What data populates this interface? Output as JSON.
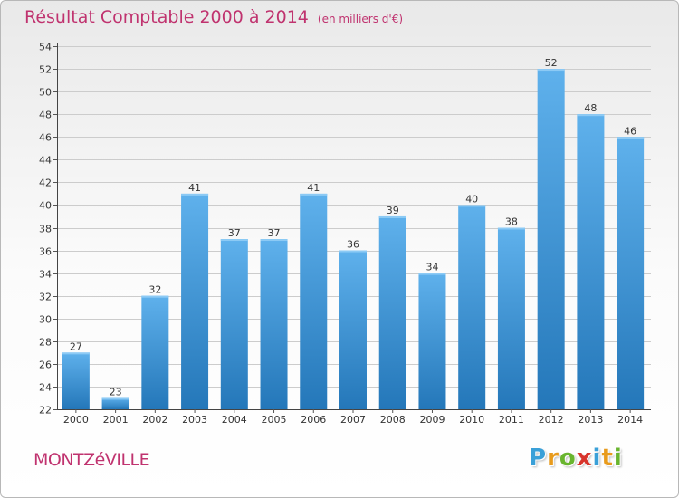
{
  "header": {
    "title": "Résultat Comptable 2000 à 2014",
    "unit": "(en milliers d'€)"
  },
  "footer": {
    "commune": "MONTZéVILLE",
    "logo_letters": [
      "P",
      "r",
      "o",
      "x",
      "i",
      "t",
      "i"
    ],
    "logo_colors": [
      "#3aa0d8",
      "#e89b1c",
      "#69b52f",
      "#d8342c",
      "#3aa0d8",
      "#e89b1c",
      "#69b52f"
    ]
  },
  "colors": {
    "title": "#c0336f",
    "bar_light": "#5fb1ec",
    "bar_dark": "#2477b9",
    "grid": "#cccccc"
  },
  "chart_data": {
    "type": "bar",
    "title": "Résultat Comptable 2000 à 2014",
    "subtitle": "(en milliers d'€)",
    "categories": [
      "2000",
      "2001",
      "2002",
      "2003",
      "2004",
      "2005",
      "2006",
      "2007",
      "2008",
      "2009",
      "2010",
      "2011",
      "2012",
      "2013",
      "2014"
    ],
    "values": [
      27,
      23,
      32,
      41,
      37,
      37,
      41,
      36,
      39,
      34,
      40,
      38,
      52,
      48,
      46
    ],
    "ylim": [
      22,
      54
    ],
    "yticks": [
      22,
      24,
      26,
      28,
      30,
      32,
      34,
      36,
      38,
      40,
      42,
      44,
      46,
      48,
      50,
      52,
      54
    ],
    "grid": true,
    "data_labels": true
  }
}
